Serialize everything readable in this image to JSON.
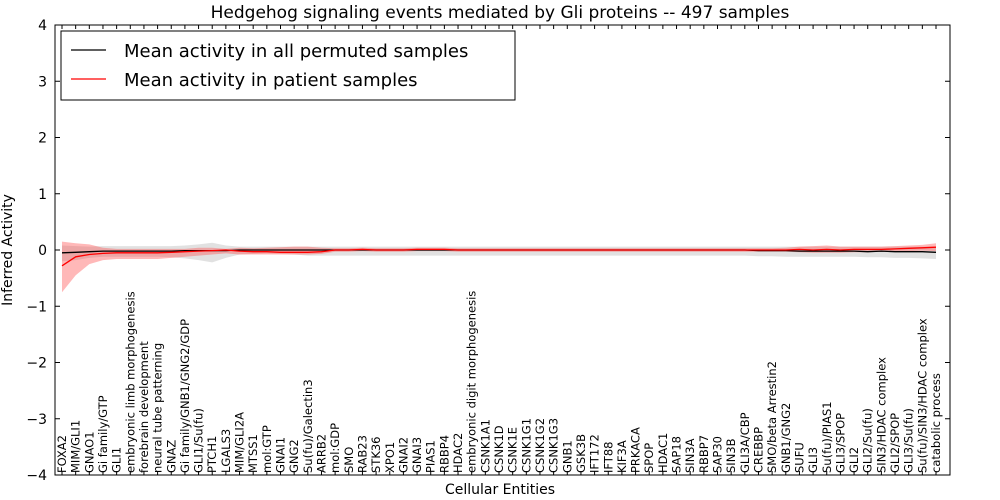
{
  "chart_data": {
    "type": "line",
    "title": "Hedgehog signaling events mediated by Gli proteins -- 497 samples",
    "xlabel": "Cellular Entities",
    "ylabel": "Inferred Activity",
    "ylim": [
      -4,
      4
    ],
    "yticks": [
      -4,
      -3,
      -2,
      -1,
      0,
      1,
      2,
      3,
      4
    ],
    "ytick_labels": [
      "−4",
      "−3",
      "−2",
      "−1",
      "0",
      "1",
      "2",
      "3",
      "4"
    ],
    "legend_position": "upper-left",
    "categories": [
      "FOXA2",
      "MIM/GLI1",
      "GNAO1",
      "Gi family/GTP",
      "GLI1",
      "embryonic limb morphogenesis",
      "forebrain development",
      "neural tube patterning",
      "GNAZ",
      "Gi family/GNB1/GNG2/GDP",
      "GLI1/Su(fu)",
      "PTCH1",
      "LGALS3",
      "MIM/GLI2A",
      "MTSS1",
      "mol:GTP",
      "GNAI1",
      "GNG2",
      "Su(fu)/Galectin3",
      "ARRB2",
      "mol:GDP",
      "SMO",
      "RAB23",
      "STK36",
      "XPO1",
      "GNAI2",
      "GNAI3",
      "PIAS1",
      "RBBP4",
      "HDAC2",
      "embryonic digit morphogenesis",
      "CSNK1A1",
      "CSNK1D",
      "CSNK1E",
      "CSNK1G1",
      "CSNK1G2",
      "CSNK1G3",
      "GNB1",
      "GSK3B",
      "IFT172",
      "IFT88",
      "KIF3A",
      "PRKACA",
      "SPOP",
      "HDAC1",
      "SAP18",
      "SIN3A",
      "RBBP7",
      "SAP30",
      "SIN3B",
      "GLI3A/CBP",
      "CREBBP",
      "SMO/beta Arrestin2",
      "GNB1/GNG2",
      "SUFU",
      "GLI3",
      "Su(fu)/PIAS1",
      "GLI3/SPOP",
      "GLI2",
      "GLI2/Su(fu)",
      "SIN3/HDAC complex",
      "GLI2/SPOP",
      "GLI3/Su(fu)",
      "Su(fu)/SIN3/HDAC complex",
      "catabolic process"
    ],
    "series": [
      {
        "name": "Mean activity in all permuted samples",
        "color": "#000000",
        "values": [
          -0.05,
          -0.04,
          -0.03,
          -0.02,
          -0.02,
          -0.02,
          -0.02,
          -0.02,
          -0.02,
          -0.01,
          -0.01,
          -0.01,
          -0.01,
          0.0,
          0.0,
          0.0,
          0.0,
          0.0,
          0.0,
          0.0,
          0.0,
          0.0,
          0.0,
          0.0,
          0.0,
          0.0,
          0.0,
          0.0,
          0.0,
          0.0,
          0.0,
          0.0,
          0.0,
          0.0,
          0.0,
          0.0,
          0.0,
          0.0,
          0.0,
          0.0,
          0.0,
          0.0,
          0.0,
          0.0,
          0.0,
          0.0,
          0.0,
          0.0,
          0.0,
          0.0,
          0.0,
          -0.01,
          -0.01,
          -0.01,
          -0.02,
          -0.02,
          -0.02,
          -0.02,
          -0.02,
          -0.03,
          -0.02,
          -0.03,
          -0.03,
          -0.03,
          -0.04
        ],
        "upper": [
          0.08,
          0.07,
          0.06,
          0.07,
          0.07,
          0.07,
          0.07,
          0.07,
          0.07,
          0.08,
          0.1,
          0.13,
          0.08,
          0.06,
          0.06,
          0.06,
          0.06,
          0.06,
          0.06,
          0.06,
          0.06,
          0.06,
          0.06,
          0.06,
          0.06,
          0.06,
          0.06,
          0.06,
          0.06,
          0.06,
          0.06,
          0.06,
          0.06,
          0.06,
          0.06,
          0.06,
          0.06,
          0.06,
          0.06,
          0.06,
          0.06,
          0.06,
          0.06,
          0.06,
          0.06,
          0.06,
          0.06,
          0.06,
          0.06,
          0.06,
          0.06,
          0.06,
          0.06,
          0.06,
          0.06,
          0.06,
          0.06,
          0.06,
          0.06,
          0.06,
          0.06,
          0.06,
          0.06,
          0.06,
          0.06
        ],
        "lower": [
          -0.2,
          -0.18,
          -0.14,
          -0.12,
          -0.12,
          -0.12,
          -0.12,
          -0.12,
          -0.13,
          -0.15,
          -0.18,
          -0.22,
          -0.14,
          -0.08,
          -0.07,
          -0.06,
          -0.07,
          -0.08,
          -0.1,
          -0.1,
          -0.1,
          -0.1,
          -0.1,
          -0.1,
          -0.1,
          -0.1,
          -0.1,
          -0.1,
          -0.1,
          -0.1,
          -0.1,
          -0.1,
          -0.1,
          -0.1,
          -0.1,
          -0.1,
          -0.1,
          -0.1,
          -0.1,
          -0.1,
          -0.1,
          -0.1,
          -0.1,
          -0.1,
          -0.1,
          -0.1,
          -0.1,
          -0.1,
          -0.1,
          -0.1,
          -0.1,
          -0.11,
          -0.11,
          -0.12,
          -0.12,
          -0.12,
          -0.12,
          -0.12,
          -0.12,
          -0.13,
          -0.13,
          -0.14,
          -0.14,
          -0.15,
          -0.16
        ]
      },
      {
        "name": "Mean activity in patient samples",
        "color": "#ff0000",
        "values": [
          -0.28,
          -0.12,
          -0.08,
          -0.06,
          -0.05,
          -0.05,
          -0.05,
          -0.05,
          -0.04,
          -0.03,
          -0.02,
          -0.01,
          0.0,
          -0.02,
          -0.03,
          -0.03,
          -0.04,
          -0.04,
          -0.04,
          -0.03,
          0.0,
          0.0,
          0.01,
          0.0,
          0.0,
          0.0,
          0.01,
          0.01,
          0.01,
          0.0,
          0.0,
          0.0,
          0.0,
          0.0,
          0.0,
          0.0,
          0.0,
          0.0,
          0.0,
          0.0,
          0.0,
          0.0,
          0.0,
          0.0,
          0.0,
          0.0,
          0.0,
          0.0,
          0.0,
          0.0,
          0.0,
          0.0,
          0.0,
          0.0,
          0.01,
          0.0,
          0.01,
          0.0,
          0.01,
          0.01,
          0.01,
          0.02,
          0.03,
          0.04,
          0.05
        ],
        "upper": [
          0.15,
          0.12,
          0.1,
          0.04,
          0.02,
          0.02,
          0.02,
          0.02,
          0.02,
          0.02,
          0.04,
          0.04,
          0.02,
          0.04,
          0.03,
          0.04,
          0.05,
          0.06,
          0.06,
          0.04,
          0.03,
          0.03,
          0.04,
          0.03,
          0.03,
          0.03,
          0.04,
          0.04,
          0.04,
          0.03,
          0.03,
          0.03,
          0.03,
          0.03,
          0.03,
          0.03,
          0.03,
          0.03,
          0.03,
          0.03,
          0.03,
          0.03,
          0.03,
          0.03,
          0.03,
          0.03,
          0.03,
          0.03,
          0.03,
          0.03,
          0.03,
          0.03,
          0.03,
          0.04,
          0.06,
          0.07,
          0.08,
          0.06,
          0.06,
          0.06,
          0.06,
          0.07,
          0.08,
          0.09,
          0.12
        ],
        "lower": [
          -0.75,
          -0.45,
          -0.25,
          -0.18,
          -0.16,
          -0.16,
          -0.16,
          -0.16,
          -0.14,
          -0.12,
          -0.1,
          -0.08,
          -0.06,
          -0.08,
          -0.08,
          -0.08,
          -0.08,
          -0.08,
          -0.08,
          -0.07,
          -0.03,
          -0.03,
          -0.02,
          -0.03,
          -0.03,
          -0.03,
          -0.02,
          -0.02,
          -0.02,
          -0.03,
          -0.03,
          -0.03,
          -0.03,
          -0.03,
          -0.03,
          -0.03,
          -0.03,
          -0.03,
          -0.03,
          -0.03,
          -0.03,
          -0.03,
          -0.03,
          -0.03,
          -0.03,
          -0.03,
          -0.03,
          -0.03,
          -0.03,
          -0.03,
          -0.03,
          -0.03,
          -0.03,
          -0.03,
          -0.04,
          -0.05,
          -0.05,
          -0.05,
          -0.04,
          -0.04,
          -0.03,
          -0.03,
          -0.02,
          -0.01,
          -0.02
        ]
      }
    ]
  }
}
